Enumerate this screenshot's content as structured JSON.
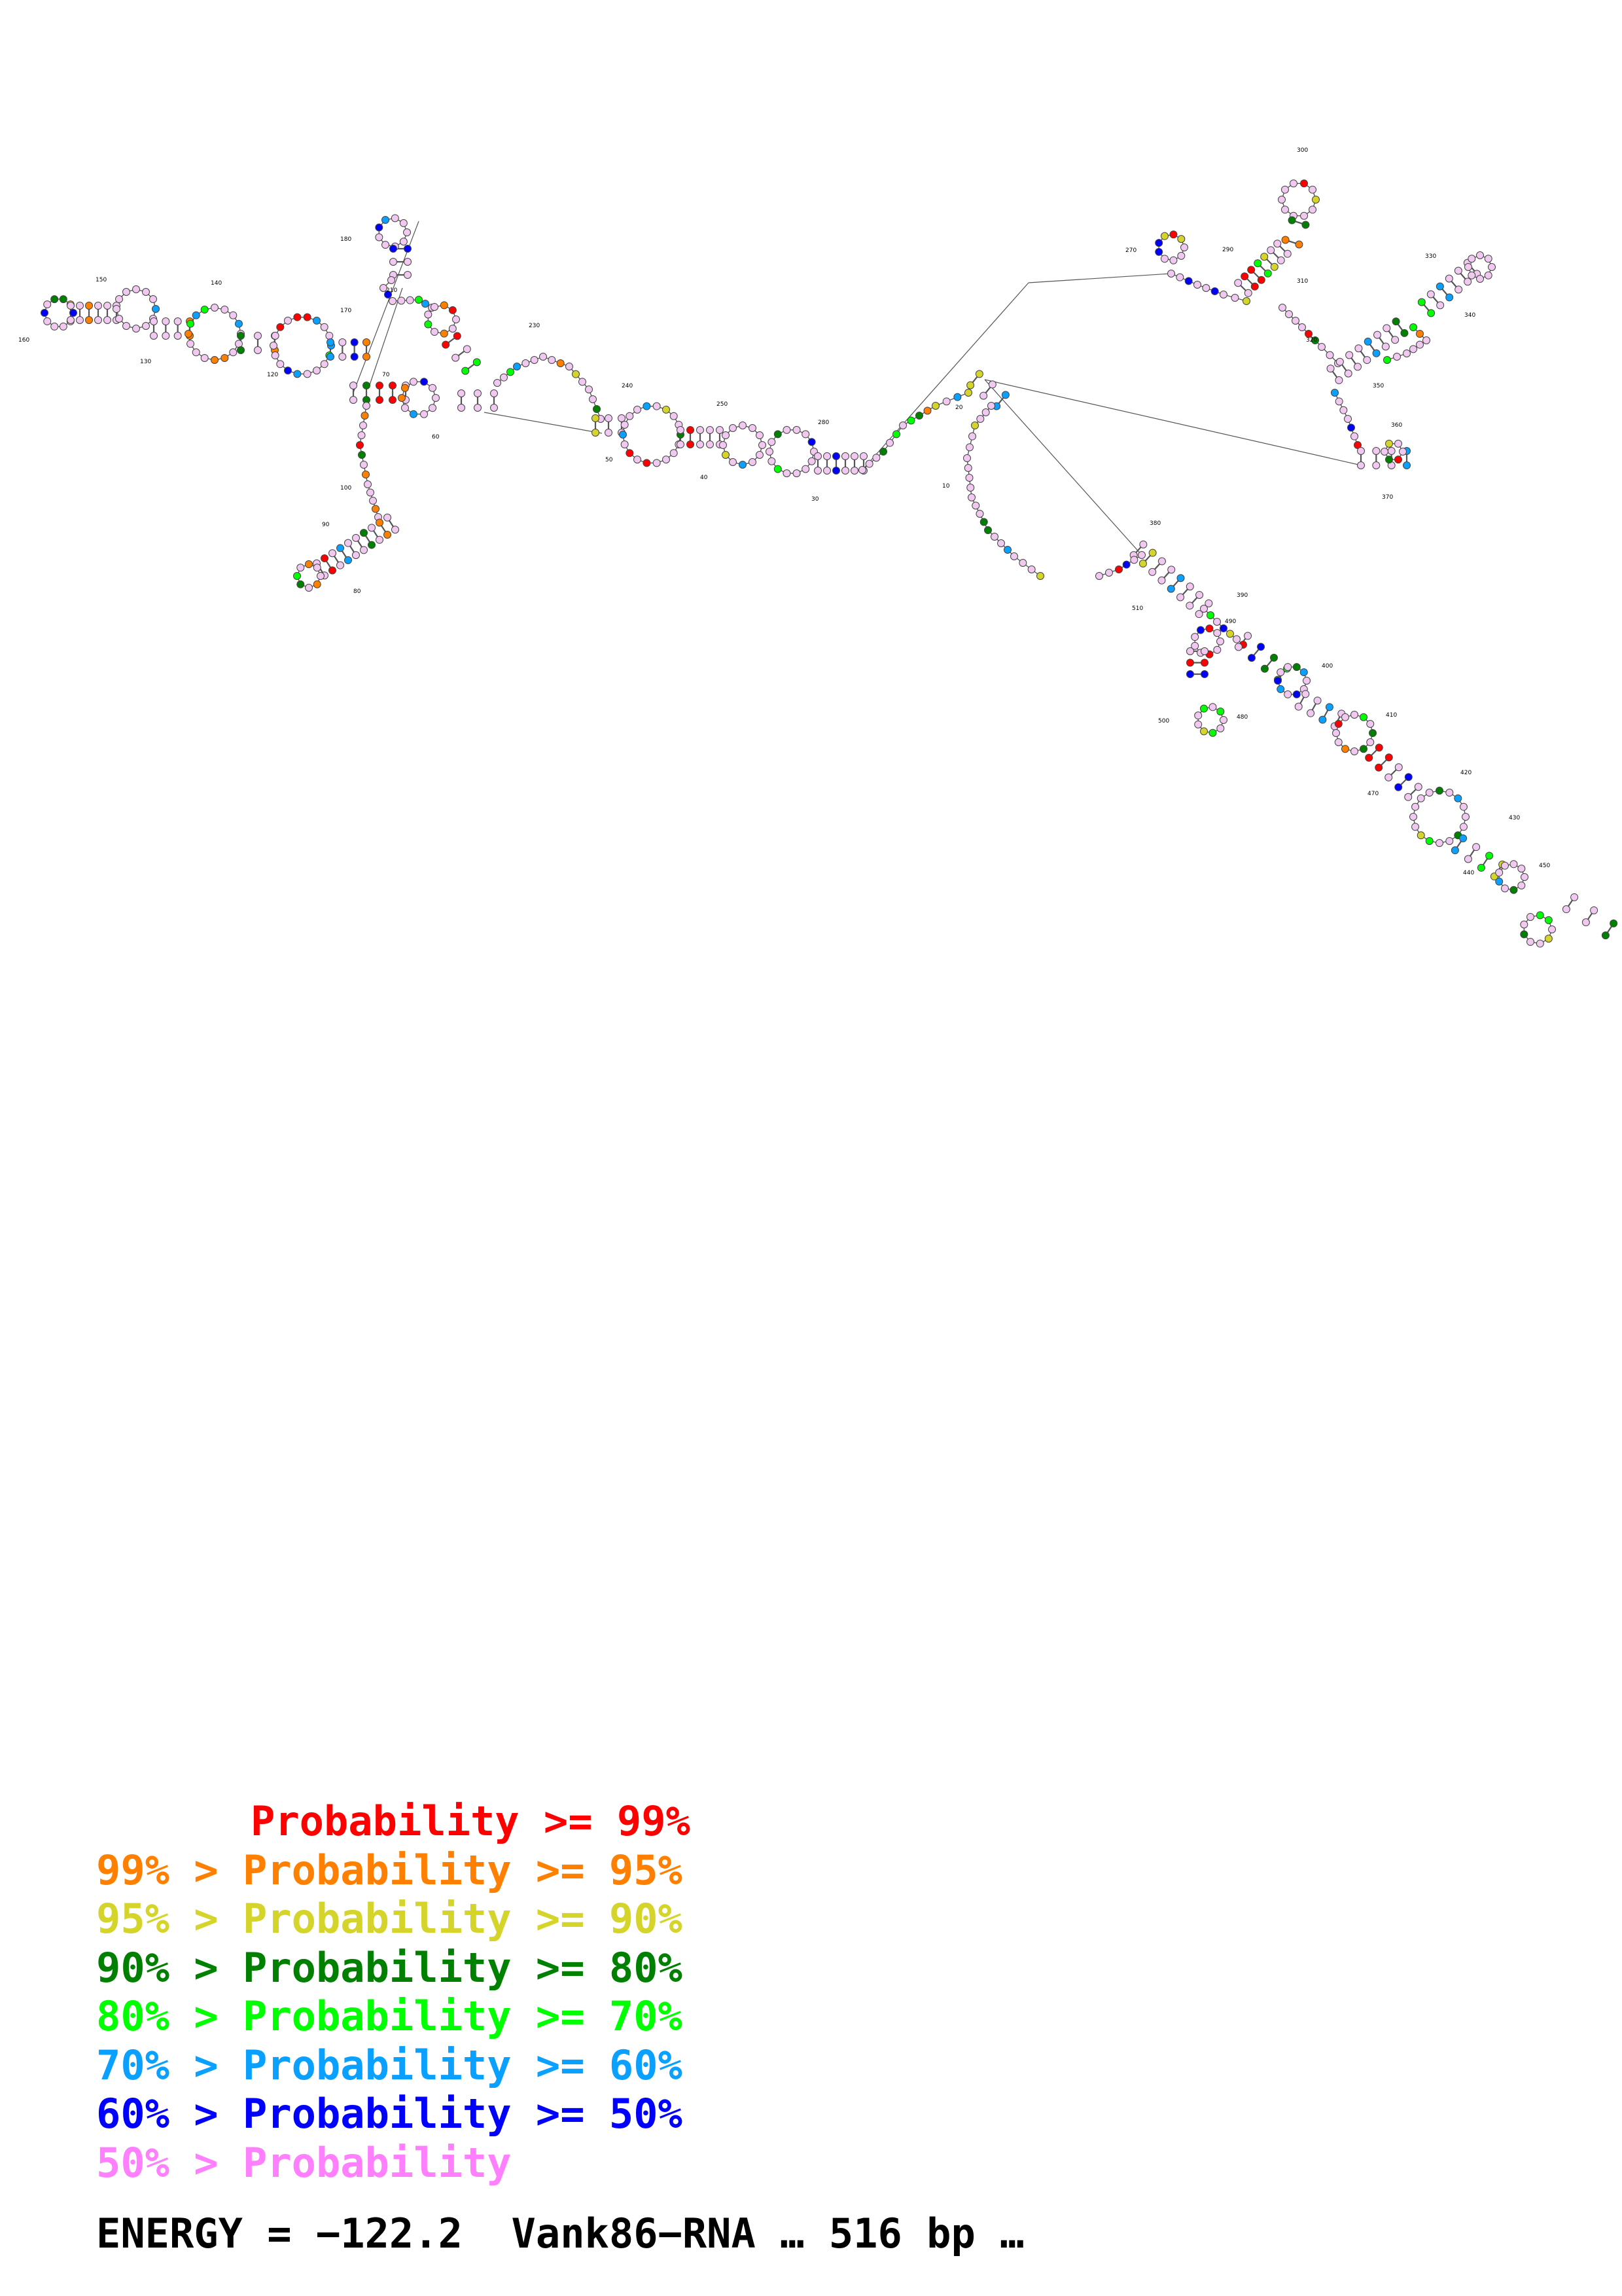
{
  "legend": [
    {
      "prefix": "       ",
      "text": "Probability >= 99%",
      "color": "#ff0000"
    },
    {
      "prefix": "",
      "text": "99% > Probability >= 95%",
      "color": "#ff8000"
    },
    {
      "prefix": "",
      "text": "95% > Probability >= 90%",
      "color": "#d4d42a"
    },
    {
      "prefix": "",
      "text": "90% > Probability >= 80%",
      "color": "#008000"
    },
    {
      "prefix": "",
      "text": "80% > Probability >= 70%",
      "color": "#00ff00"
    },
    {
      "prefix": "",
      "text": "70% > Probability >= 60%",
      "color": "#0aa0ff"
    },
    {
      "prefix": "",
      "text": "60% > Probability >= 50%",
      "color": "#0000ff"
    },
    {
      "prefix": "",
      "text": "50% > Probability",
      "color": "#ff80ff"
    }
  ],
  "energy_text": "ENERGY = −122.2  Vank86−RNA … 516 bp …",
  "diagram": {
    "base_fill_default": "#f0c8f0",
    "position_labels": [
      "10",
      "20",
      "30",
      "40",
      "50",
      "60",
      "70",
      "80",
      "90",
      "100",
      "120",
      "130",
      "140",
      "150",
      "160",
      "170",
      "180",
      "210",
      "230",
      "240",
      "250",
      "280",
      "270",
      "290",
      "300",
      "310",
      "320",
      "330",
      "340",
      "350",
      "360",
      "370",
      "380",
      "390",
      "400",
      "410",
      "420",
      "430",
      "440",
      "450",
      "470",
      "480",
      "490",
      "500",
      "510"
    ]
  }
}
